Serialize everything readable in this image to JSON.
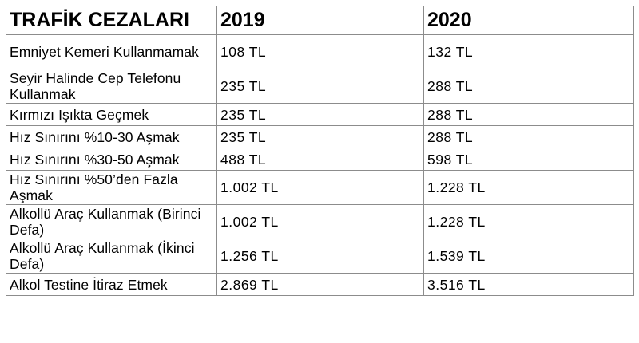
{
  "table": {
    "headers": [
      "TRAFİK CEZALARI",
      "2019",
      "2020"
    ],
    "rows": [
      {
        "label": "Emniyet Kemeri Kullanmamak",
        "v2019": "108 TL",
        "v2020": "132 TL"
      },
      {
        "label": "Seyir Halinde Cep Telefonu Kullanmak",
        "v2019": "235 TL",
        "v2020": "288 TL"
      },
      {
        "label": "Kırmızı Işıkta Geçmek",
        "v2019": "235 TL",
        "v2020": "288 TL"
      },
      {
        "label": "Hız Sınırını %10-30 Aşmak",
        "v2019": "235 TL",
        "v2020": "288 TL"
      },
      {
        "label": "Hız Sınırını %30-50 Aşmak",
        "v2019": "488 TL",
        "v2020": "598 TL"
      },
      {
        "label": "Hız Sınırını %50’den Fazla Aşmak",
        "v2019": "1.002 TL",
        "v2020": "1.228 TL"
      },
      {
        "label": "Alkollü Araç Kullanmak (Birinci Defa)",
        "v2019": "1.002 TL",
        "v2020": "1.228 TL"
      },
      {
        "label": "Alkollü Araç Kullanmak (İkinci Defa)",
        "v2019": "1.256 TL",
        "v2020": "1.539 TL"
      },
      {
        "label": "Alkol Testine İtiraz Etmek",
        "v2019": "2.869 TL",
        "v2020": "3.516 TL"
      }
    ]
  }
}
